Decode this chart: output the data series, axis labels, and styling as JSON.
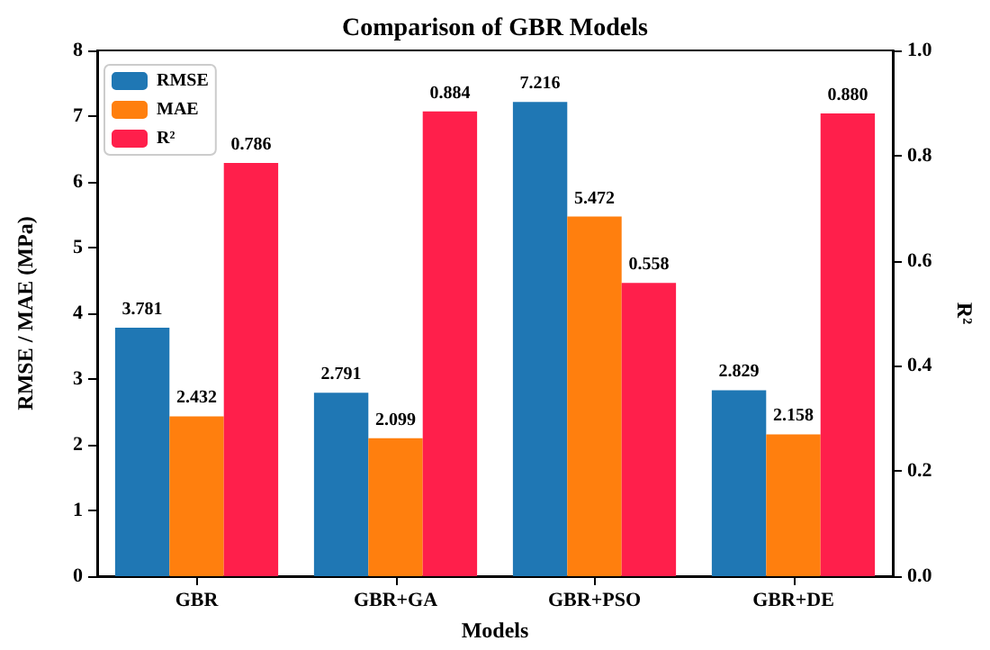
{
  "chart_data": {
    "type": "bar",
    "title": "Comparison of GBR Models",
    "xlabel": "Models",
    "ylabel": "RMSE / MAE (MPa)",
    "y2label": "R²",
    "categories": [
      "GBR",
      "GBR+GA",
      "GBR+PSO",
      "GBR+DE"
    ],
    "series": [
      {
        "name": "RMSE",
        "color": "#1f77b4",
        "values": [
          3.781,
          2.791,
          7.216,
          2.829
        ],
        "value_labels": [
          "3.781",
          "2.791",
          "7.216",
          "2.829"
        ]
      },
      {
        "name": "MAE",
        "color": "#ff7f0e",
        "values": [
          2.432,
          2.099,
          5.472,
          2.158
        ],
        "value_labels": [
          "2.432",
          "2.099",
          "5.472",
          "2.158"
        ]
      },
      {
        "name": "R²",
        "color": "#ff1f4b",
        "axis": "y2",
        "values": [
          0.786,
          0.884,
          0.558,
          0.88
        ],
        "value_labels": [
          "0.786",
          "0.884",
          "0.558",
          "0.880"
        ]
      }
    ],
    "ylim": [
      0,
      8
    ],
    "yticks": [
      0,
      1,
      2,
      3,
      4,
      5,
      6,
      7,
      8
    ],
    "y2lim": [
      0,
      1
    ],
    "y2ticks": [
      {
        "value": 0,
        "label": "0.0"
      },
      {
        "value": 0.2,
        "label": "0.2"
      },
      {
        "value": 0.4,
        "label": "0.4"
      },
      {
        "value": 0.6,
        "label": "0.6"
      },
      {
        "value": 0.8,
        "label": "0.8"
      },
      {
        "value": 1,
        "label": "1.0"
      }
    ],
    "legend": "top left",
    "grid": false
  }
}
